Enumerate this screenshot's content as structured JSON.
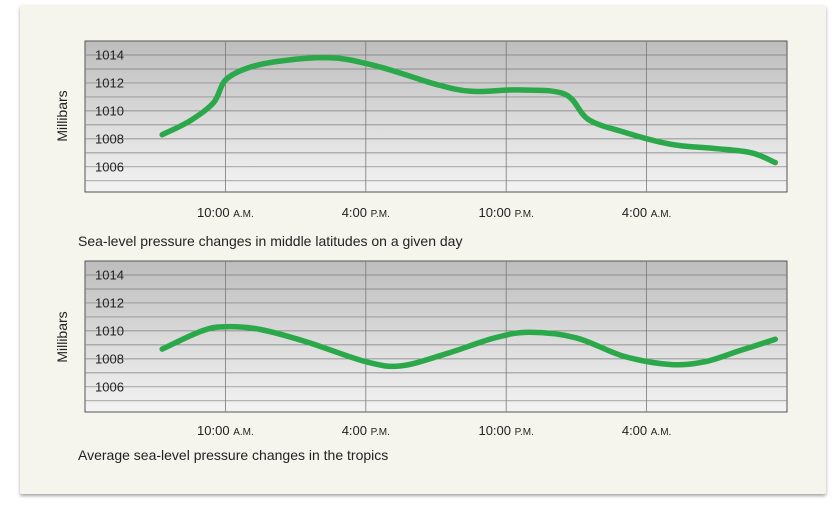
{
  "chart_data": [
    {
      "type": "line",
      "title": "Sea-level pressure changes in middle latitudes on a given day",
      "ylabel": "Millibars",
      "xlabel": "",
      "ylim": [
        1004.2,
        1015
      ],
      "yticks": [
        1014,
        1012,
        1010,
        1008,
        1006
      ],
      "x_tick_labels": [
        {
          "hour": 10,
          "time": "10:00",
          "suffix": "A.M."
        },
        {
          "hour": 16,
          "time": "4:00",
          "suffix": "P.M."
        },
        {
          "hour": 22,
          "time": "10:00",
          "suffix": "P.M."
        },
        {
          "hour": 28,
          "time": "4:00",
          "suffix": "A.M."
        }
      ],
      "xlim": [
        4,
        34
      ],
      "grid": true,
      "series": [
        {
          "color": "#2aa84a",
          "x": [
            7.3,
            8.5,
            9.5,
            10.0,
            11.0,
            12.5,
            14.5,
            16.0,
            17.5,
            19.0,
            20.5,
            22.5,
            24.5,
            25.5,
            27.0,
            28.5,
            29.5,
            31.0,
            32.5,
            33.5
          ],
          "y": [
            1008.3,
            1009.3,
            1010.6,
            1012.2,
            1013.1,
            1013.6,
            1013.8,
            1013.4,
            1012.7,
            1011.9,
            1011.4,
            1011.5,
            1011.2,
            1009.4,
            1008.5,
            1007.8,
            1007.5,
            1007.3,
            1007.0,
            1006.3
          ]
        }
      ]
    },
    {
      "type": "line",
      "title": "Average sea-level pressure changes in the tropics",
      "ylabel": "Millibars",
      "xlabel": "",
      "ylim": [
        1004.2,
        1015
      ],
      "yticks": [
        1014,
        1012,
        1010,
        1008,
        1006
      ],
      "x_tick_labels": [
        {
          "hour": 10,
          "time": "10:00",
          "suffix": "A.M."
        },
        {
          "hour": 16,
          "time": "4:00",
          "suffix": "P.M."
        },
        {
          "hour": 22,
          "time": "10:00",
          "suffix": "P.M."
        },
        {
          "hour": 28,
          "time": "4:00",
          "suffix": "A.M."
        }
      ],
      "xlim": [
        4,
        34
      ],
      "grid": true,
      "series": [
        {
          "color": "#2aa84a",
          "x": [
            7.3,
            9.0,
            10.0,
            11.5,
            13.5,
            16.0,
            17.5,
            19.5,
            21.5,
            23.0,
            25.0,
            27.0,
            29.0,
            30.5,
            32.0,
            33.5
          ],
          "y": [
            1008.7,
            1010.0,
            1010.3,
            1010.1,
            1009.2,
            1007.8,
            1007.5,
            1008.4,
            1009.5,
            1009.9,
            1009.5,
            1008.2,
            1007.6,
            1007.8,
            1008.6,
            1009.4
          ]
        }
      ]
    }
  ]
}
